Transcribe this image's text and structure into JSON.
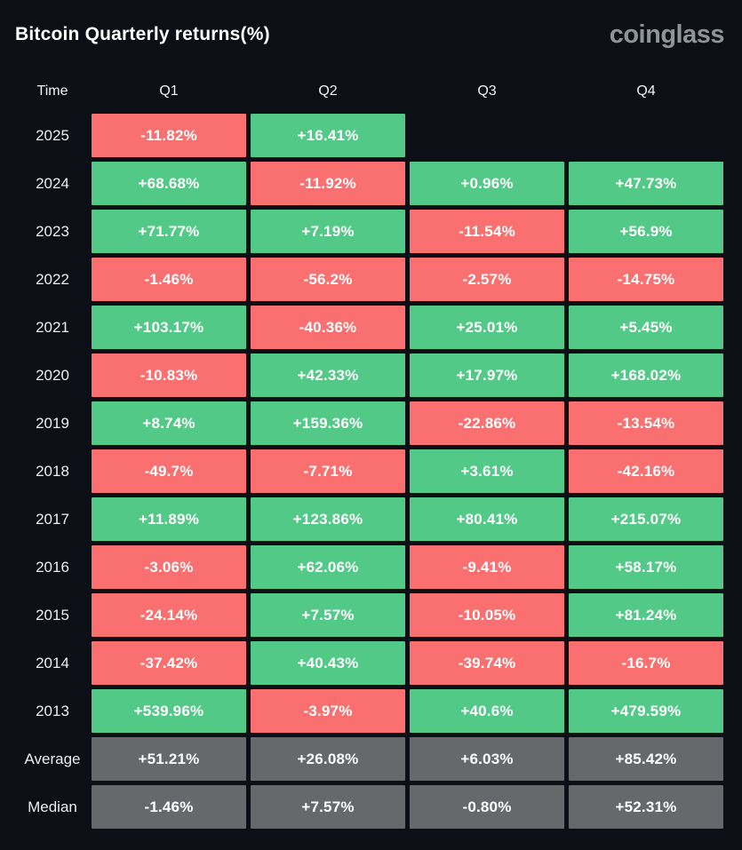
{
  "page": {
    "title": "Bitcoin Quarterly returns(%)",
    "logo_text": "coinglass"
  },
  "palette": {
    "page_bg": "#0d0f16",
    "positive": "#52c987",
    "negative": "#fa7070",
    "summary": "#66686b",
    "cell_text": "#ffffff",
    "label_text": "#eceef2",
    "logo_color": "#8f939b"
  },
  "chart_data": {
    "type": "heatmap",
    "title": "Bitcoin Quarterly returns(%)",
    "time_header": "Time",
    "columns": [
      "Q1",
      "Q2",
      "Q3",
      "Q4"
    ],
    "rows": [
      {
        "label": "2025",
        "kind": "year",
        "values": [
          "-11.82%",
          "+16.41%",
          null,
          null
        ]
      },
      {
        "label": "2024",
        "kind": "year",
        "values": [
          "+68.68%",
          "-11.92%",
          "+0.96%",
          "+47.73%"
        ]
      },
      {
        "label": "2023",
        "kind": "year",
        "values": [
          "+71.77%",
          "+7.19%",
          "-11.54%",
          "+56.9%"
        ]
      },
      {
        "label": "2022",
        "kind": "year",
        "values": [
          "-1.46%",
          "-56.2%",
          "-2.57%",
          "-14.75%"
        ]
      },
      {
        "label": "2021",
        "kind": "year",
        "values": [
          "+103.17%",
          "-40.36%",
          "+25.01%",
          "+5.45%"
        ]
      },
      {
        "label": "2020",
        "kind": "year",
        "values": [
          "-10.83%",
          "+42.33%",
          "+17.97%",
          "+168.02%"
        ]
      },
      {
        "label": "2019",
        "kind": "year",
        "values": [
          "+8.74%",
          "+159.36%",
          "-22.86%",
          "-13.54%"
        ]
      },
      {
        "label": "2018",
        "kind": "year",
        "values": [
          "-49.7%",
          "-7.71%",
          "+3.61%",
          "-42.16%"
        ]
      },
      {
        "label": "2017",
        "kind": "year",
        "values": [
          "+11.89%",
          "+123.86%",
          "+80.41%",
          "+215.07%"
        ]
      },
      {
        "label": "2016",
        "kind": "year",
        "values": [
          "-3.06%",
          "+62.06%",
          "-9.41%",
          "+58.17%"
        ]
      },
      {
        "label": "2015",
        "kind": "year",
        "values": [
          "-24.14%",
          "+7.57%",
          "-10.05%",
          "+81.24%"
        ]
      },
      {
        "label": "2014",
        "kind": "year",
        "values": [
          "-37.42%",
          "+40.43%",
          "-39.74%",
          "-16.7%"
        ]
      },
      {
        "label": "2013",
        "kind": "year",
        "values": [
          "+539.96%",
          "-3.97%",
          "+40.6%",
          "+479.59%"
        ]
      },
      {
        "label": "Average",
        "kind": "summary",
        "values": [
          "+51.21%",
          "+26.08%",
          "+6.03%",
          "+85.42%"
        ]
      },
      {
        "label": "Median",
        "kind": "summary",
        "values": [
          "-1.46%",
          "+7.57%",
          "-0.80%",
          "+52.31%"
        ]
      }
    ]
  }
}
